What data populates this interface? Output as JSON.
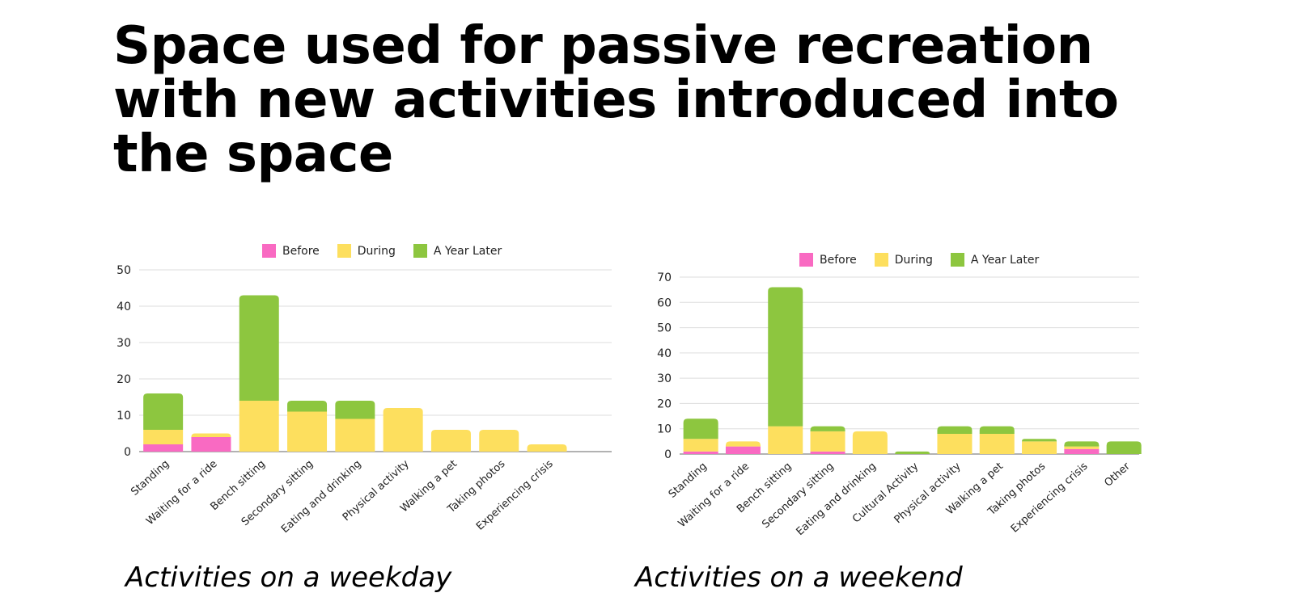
{
  "title_lines": [
    "Space used for passive recreation",
    "with new activities introduced into",
    "the space"
  ],
  "colors": {
    "before": "#f96ac2",
    "during": "#fddf5e",
    "year_later": "#8dc63f",
    "grid": "#dddddd",
    "axis": "#666666"
  },
  "chart_data": [
    {
      "type": "bar",
      "stacked": true,
      "caption": "Activities on a weekday",
      "categories": [
        "Standing",
        "Waiting for a ride",
        "Bench sitting",
        "Secondary sitting",
        "Eating and drinking",
        "Physical activity",
        "Walking a pet",
        "Taking photos",
        "Experiencing crisis"
      ],
      "series": [
        {
          "name": "Before",
          "values": [
            2,
            4,
            0,
            0,
            0,
            0,
            0,
            0,
            0
          ]
        },
        {
          "name": "During",
          "values": [
            4,
            1,
            14,
            11,
            9,
            12,
            6,
            6,
            2
          ]
        },
        {
          "name": "A Year Later",
          "values": [
            10,
            0,
            29,
            3,
            5,
            0,
            0,
            0,
            0
          ]
        }
      ],
      "ylim": [
        0,
        50
      ],
      "yticks": [
        "0",
        "10",
        "20",
        "30",
        "40",
        "50"
      ],
      "grid": true,
      "legend": "top"
    },
    {
      "type": "bar",
      "stacked": true,
      "caption": "Activities on a weekend",
      "categories": [
        "Standing",
        "Waiting for a ride",
        "Bench sitting",
        "Secondary sitting",
        "Eating and drinking",
        "Cultural Activity",
        "Physical activity",
        "Walking a pet",
        "Taking photos",
        "Experiencing crisis",
        "Other"
      ],
      "series": [
        {
          "name": "Before",
          "values": [
            1,
            3,
            0,
            1,
            0,
            0,
            0,
            0,
            0,
            2,
            0
          ]
        },
        {
          "name": "During",
          "values": [
            5,
            2,
            11,
            8,
            9,
            0,
            8,
            8,
            5,
            1,
            0
          ]
        },
        {
          "name": "A Year Later",
          "values": [
            8,
            0,
            55,
            2,
            0,
            1,
            3,
            3,
            1,
            2,
            5
          ]
        }
      ],
      "ylim": [
        0,
        70
      ],
      "yticks": [
        "0",
        "10",
        "20",
        "30",
        "40",
        "50",
        "60",
        "70"
      ],
      "grid": true,
      "legend": "top"
    }
  ]
}
